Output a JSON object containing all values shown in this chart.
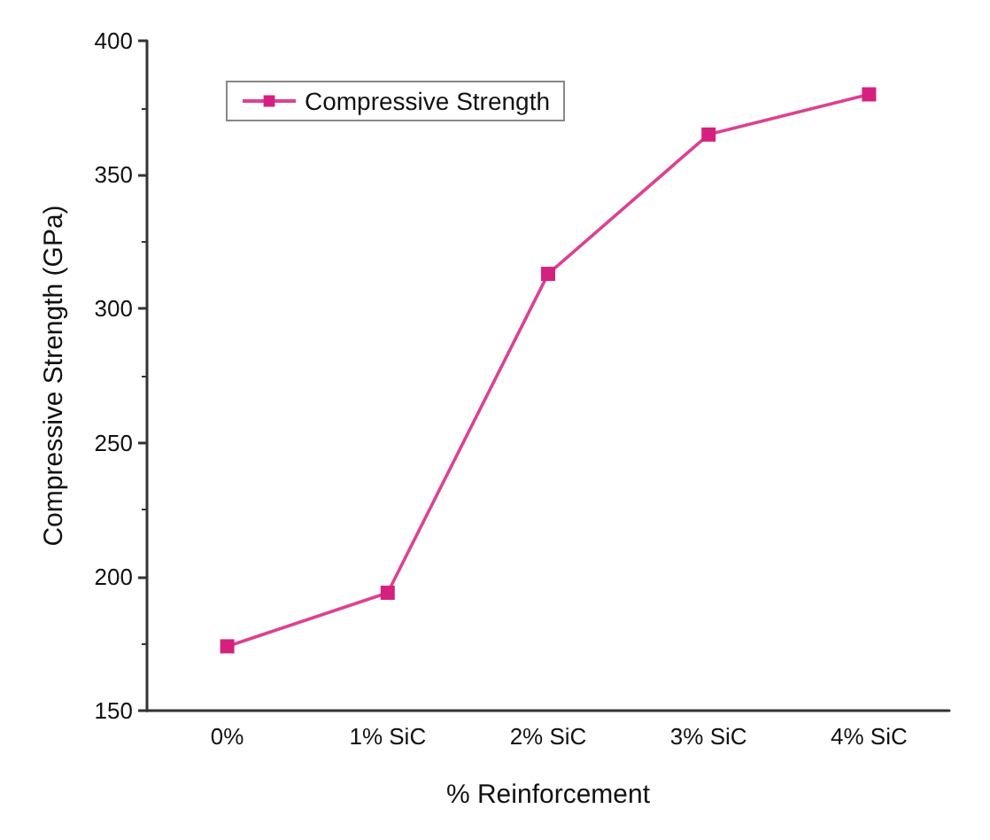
{
  "chart_data": {
    "type": "line",
    "xlabel": "% Reinforcement",
    "ylabel": "Compressive Strength (GPa)",
    "categories": [
      "0%",
      "1% SiC",
      "2% SiC",
      "3% SiC",
      "4% SiC"
    ],
    "series": [
      {
        "name": "Compressive Strength",
        "color": "#d6207f",
        "values": [
          174,
          194,
          313,
          365,
          380
        ]
      }
    ],
    "ylim": [
      150,
      400
    ],
    "yticks": [
      150,
      200,
      250,
      300,
      350,
      400
    ],
    "marker": "square",
    "line_style": "solid",
    "legend": "top left",
    "grid": false
  }
}
